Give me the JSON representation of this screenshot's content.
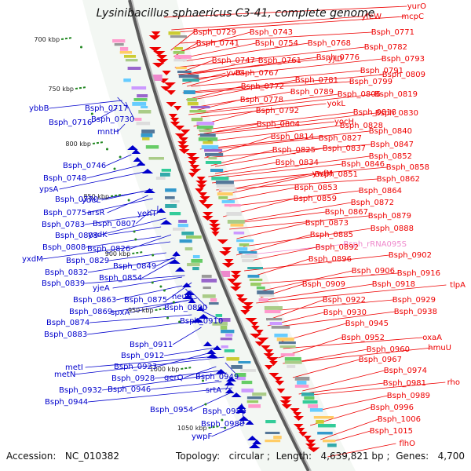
{
  "title": "Lysinibacillus sphaericus C3-41, complete genome",
  "footer": {
    "accession_label": "Accession:",
    "accession_value": "NC_010382",
    "topology_label": "Topology:",
    "topology_value": "circular",
    "length_label": "Length:",
    "length_value": "4,639,821 bp",
    "genes_label": "Genes:",
    "genes_value": "4,700"
  },
  "colors": {
    "forward_strand": "#0000cc",
    "reverse_strand": "#ee0000",
    "rrna": "#ee88cc",
    "backbone": "#888888",
    "tick": "#228822"
  },
  "ticks": [
    "700 kbp",
    "750 kbp",
    "800 kbp",
    "850 kbp",
    "900 kbp",
    "950 kbp",
    "1000 kbp",
    "1050 kbp"
  ],
  "left_labels": [
    "ybbB",
    "Bsph_0717",
    "Bsph_0716",
    "Bsph_0730",
    "mntH",
    "Bsph_0746",
    "Bsph_0748",
    "ypsA",
    "Bsph_0770",
    "ydeL",
    "Bsph_0775",
    "arsR",
    "yehT",
    "Bsph_0783",
    "Bsph_0807",
    "Bsph_0803",
    "yxdK",
    "Bsph_0808",
    "Bsph_0826",
    "yxdM",
    "Bsph_0829",
    "Bsph_0849",
    "Bsph_0832",
    "Bsph_0854",
    "Bsph_0839",
    "yjeA",
    "Bsph_0863",
    "Bsph_0875",
    "neuA",
    "Bsph_0869",
    "spxA",
    "Bsph_0890",
    "Bsph_0874",
    "Bsph_0910",
    "Bsph_0883",
    "Bsph_0911",
    "Bsph_0912",
    "metI",
    "Bsph_0923",
    "metN",
    "Bsph_0928",
    "gerQ",
    "Bsph_0949",
    "Bsph_0932",
    "Bsph_0946",
    "srtA",
    "Bsph_0944",
    "Bsph_0954",
    "Bsph_0956",
    "Bsph_0980",
    "ywpF"
  ],
  "right_labels": [
    "yurO",
    "yfeW",
    "mcpC",
    "Bsph_0729",
    "Bsph_0743",
    "Bsph_0771",
    "Bsph_0741",
    "Bsph_0754",
    "Bsph_0768",
    "Bsph_0782",
    "Bsph_0747",
    "Bsph_0761",
    "yjlD",
    "Bsph_0776",
    "Bsph_0793",
    "yvrG",
    "Bsph_0767",
    "Bsph_0791",
    "Bsph_0809",
    "Bsph_0781",
    "Bsph_0799",
    "Bsph_0772",
    "Bsph_0789",
    "Bsph_0806",
    "Bsph_0819",
    "Bsph_0778",
    "yokL",
    "Bsph_0792",
    "Bsph_0818",
    "Bsph_0830",
    "Bsph_0804",
    "yocH",
    "Bsph_0828",
    "Bsph_0840",
    "Bsph_0814",
    "Bsph_0827",
    "Bsph_0847",
    "Bsph_0825",
    "Bsph_0837",
    "Bsph_0852",
    "Bsph_0834",
    "Bsph_0846",
    "Bsph_0858",
    "ywfM",
    "Bsph_0851",
    "Bsph_0862",
    "Bsph_0853",
    "Bsph_0864",
    "Bsph_0859",
    "Bsph_0872",
    "Bsph_0867",
    "Bsph_0879",
    "Bsph_0873",
    "Bsph_0888",
    "Bsph_0885",
    "Bsph_rRNA095S",
    "Bsph_0892",
    "Bsph_0902",
    "Bsph_0896",
    "Bsph_0906",
    "Bsph_0916",
    "Bsph_0909",
    "Bsph_0918",
    "tlpA",
    "Bsph_0922",
    "Bsph_0929",
    "Bsph_0930",
    "Bsph_0938",
    "Bsph_0945",
    "Bsph_0952",
    "oxaA",
    "Bsph_0960",
    "hmuU",
    "Bsph_0967",
    "Bsph_0974",
    "Bsph_0981",
    "rho",
    "Bsph_0989",
    "Bsph_0996",
    "Bsph_1006",
    "Bsph_1015",
    "flhO"
  ]
}
